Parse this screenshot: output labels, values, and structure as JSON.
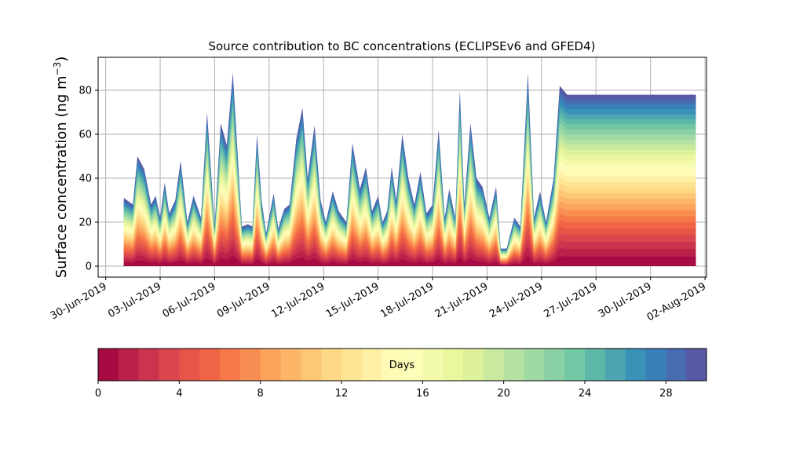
{
  "chart_data": {
    "type": "area",
    "title": "Source contribution to BC concentrations (ECLIPSEv6 and GFED4)",
    "ylabel_main": "Surface concentration (ng m",
    "ylabel_sup": "−3",
    "ylabel_close": ")",
    "xlabel": "",
    "ylim": [
      -5,
      95
    ],
    "yticks": [
      0,
      20,
      40,
      60,
      80
    ],
    "xlim": [
      "2019-06-29T14:00",
      "2019-08-02T02:00"
    ],
    "xticks": [
      "30-Jun-2019",
      "03-Jul-2019",
      "06-Jul-2019",
      "09-Jul-2019",
      "12-Jul-2019",
      "15-Jul-2019",
      "18-Jul-2019",
      "21-Jul-2019",
      "24-Jul-2019",
      "27-Jul-2019",
      "30-Jul-2019",
      "02-Aug-2019"
    ],
    "xtick_dates": [
      "2019-06-30",
      "2019-07-03",
      "2019-07-06",
      "2019-07-09",
      "2019-07-12",
      "2019-07-15",
      "2019-07-18",
      "2019-07-21",
      "2019-07-24",
      "2019-07-27",
      "2019-07-30",
      "2019-08-02"
    ],
    "grid": true,
    "total": {
      "x": [
        "2019-07-01T00:00",
        "2019-07-01T12:00",
        "2019-07-01T18:00",
        "2019-07-02T03:00",
        "2019-07-02T12:00",
        "2019-07-02T18:00",
        "2019-07-03T00:00",
        "2019-07-03T06:00",
        "2019-07-03T12:00",
        "2019-07-03T20:00",
        "2019-07-04T03:00",
        "2019-07-04T12:00",
        "2019-07-04T20:00",
        "2019-07-05T06:00",
        "2019-07-05T14:00",
        "2019-07-06T00:00",
        "2019-07-06T08:00",
        "2019-07-06T16:00",
        "2019-07-07T00:00",
        "2019-07-07T12:00",
        "2019-07-07T20:00",
        "2019-07-08T02:00",
        "2019-07-08T08:00",
        "2019-07-08T14:00",
        "2019-07-08T20:00",
        "2019-07-09T06:00",
        "2019-07-09T12:00",
        "2019-07-09T20:00",
        "2019-07-10T03:00",
        "2019-07-10T12:00",
        "2019-07-10T20:00",
        "2019-07-11T03:00",
        "2019-07-11T12:00",
        "2019-07-11T20:00",
        "2019-07-12T03:00",
        "2019-07-12T12:00",
        "2019-07-12T20:00",
        "2019-07-13T06:00",
        "2019-07-13T14:00",
        "2019-07-14T00:00",
        "2019-07-14T08:00",
        "2019-07-14T16:00",
        "2019-07-15T00:00",
        "2019-07-15T06:00",
        "2019-07-15T12:00",
        "2019-07-15T18:00",
        "2019-07-16T00:00",
        "2019-07-16T08:00",
        "2019-07-16T16:00",
        "2019-07-17T00:00",
        "2019-07-17T08:00",
        "2019-07-17T16:00",
        "2019-07-18T00:00",
        "2019-07-18T08:00",
        "2019-07-18T16:00",
        "2019-07-18T22:00",
        "2019-07-19T06:00",
        "2019-07-19T12:00",
        "2019-07-19T18:00",
        "2019-07-20T02:00",
        "2019-07-20T10:00",
        "2019-07-20T18:00",
        "2019-07-21T03:00",
        "2019-07-21T12:00",
        "2019-07-21T18:00",
        "2019-07-22T02:00",
        "2019-07-22T12:00",
        "2019-07-22T20:00",
        "2019-07-23T06:00",
        "2019-07-23T14:00",
        "2019-07-23T22:00",
        "2019-07-24T06:00",
        "2019-07-24T16:00",
        "2019-07-25T00:00",
        "2019-07-25T10:00",
        "2019-07-25T20:00",
        "2019-07-26T04:00",
        "2019-07-26T12:00",
        "2019-07-26T20:00",
        "2019-07-27T02:00",
        "2019-07-27T08:00",
        "2019-07-27T14:00",
        "2019-07-27T20:00",
        "2019-07-28T03:00",
        "2019-07-28T12:00",
        "2019-07-28T20:00",
        "2019-07-29T06:00",
        "2019-07-29T14:00",
        "2019-07-29T22:00",
        "2019-07-30T06:00",
        "2019-07-30T10:00",
        "2019-07-30T16:00",
        "2019-07-30T22:00",
        "2019-07-31T04:00",
        "2019-07-31T10:00",
        "2019-07-31T16:00",
        "2019-07-31T22:00",
        "2019-08-01T04:00",
        "2019-08-01T08:00",
        "2019-08-01T12:00"
      ],
      "values": [
        31,
        28,
        50,
        44,
        28,
        32,
        22,
        38,
        24,
        30,
        48,
        20,
        32,
        22,
        70,
        18,
        65,
        55,
        88,
        18,
        19,
        18,
        60,
        30,
        15,
        33,
        17,
        26,
        28,
        58,
        72,
        40,
        64,
        30,
        20,
        34,
        25,
        20,
        56,
        35,
        45,
        25,
        32,
        20,
        25,
        45,
        30,
        60,
        40,
        28,
        43,
        24,
        28,
        62,
        22,
        35,
        22,
        80,
        28,
        65,
        40,
        36,
        22,
        36,
        8,
        8,
        22,
        18,
        88,
        22,
        34,
        20,
        40,
        82,
        78,
        78,
        78,
        78,
        78,
        78,
        78,
        78,
        78,
        78,
        78,
        78,
        78,
        78,
        78,
        78,
        78,
        78,
        78,
        78,
        78,
        78,
        78,
        78,
        78,
        78
      ],
      "note": ""
    },
    "colorbar": {
      "label": "Days",
      "min": 0,
      "max": 30,
      "ticks": [
        0,
        4,
        8,
        12,
        16,
        20,
        24,
        28
      ],
      "bins": 30,
      "colormap": "Spectral"
    }
  }
}
